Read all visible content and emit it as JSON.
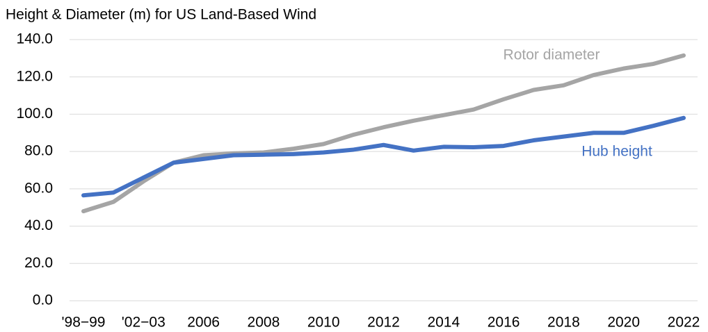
{
  "chart_data": {
    "type": "line",
    "title": "Height & Diameter (m) for US Land-Based Wind",
    "categories": [
      "'98−99",
      null,
      "'02−03",
      null,
      "2006",
      null,
      "2008",
      null,
      "2010",
      null,
      "2012",
      null,
      "2014",
      null,
      "2016",
      null,
      "2018",
      null,
      "2020",
      null,
      "2022"
    ],
    "series": [
      {
        "name": "Rotor diameter",
        "color": "#a5a5a5",
        "values": [
          48,
          53,
          64,
          74,
          78,
          79,
          79.5,
          81.5,
          84,
          89,
          93,
          96.5,
          99.5,
          102.5,
          108,
          113,
          115.5,
          121,
          124.5,
          127,
          131.5
        ]
      },
      {
        "name": "Hub height",
        "color": "#4472c4",
        "values": [
          56.5,
          58,
          66,
          74,
          76,
          78,
          78.3,
          78.6,
          79.5,
          81,
          83.5,
          80.5,
          82.5,
          82.3,
          83,
          86,
          88,
          90,
          90,
          93.8,
          98
        ]
      }
    ],
    "ylim": [
      0,
      140
    ],
    "yticks": [
      {
        "value": 0,
        "label": "0.0"
      },
      {
        "value": 20,
        "label": "20.0"
      },
      {
        "value": 40,
        "label": "40.0"
      },
      {
        "value": 60,
        "label": "60.0"
      },
      {
        "value": 80,
        "label": "80.0"
      },
      {
        "value": 100,
        "label": "100.0"
      },
      {
        "value": 120,
        "label": "120.0"
      },
      {
        "value": 140,
        "label": "140.0"
      }
    ],
    "grid": true
  }
}
